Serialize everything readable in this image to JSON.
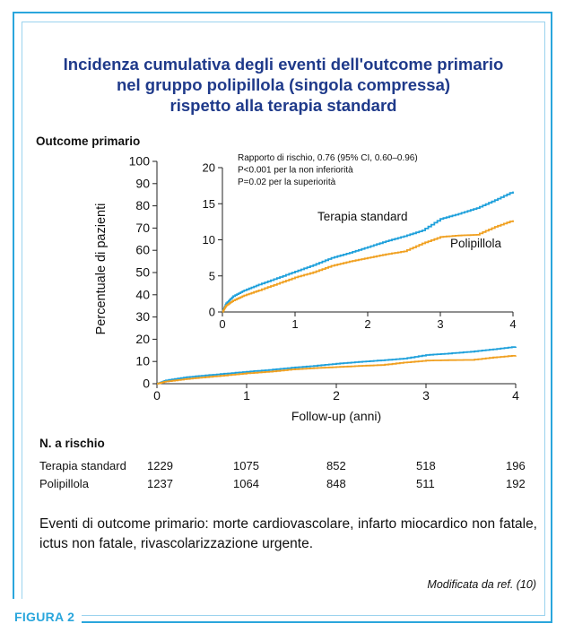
{
  "title_lines": [
    "Incidenza cumulativa degli eventi dell'outcome primario",
    "nel gruppo polipillola (singola compressa)",
    "rispetto alla terapia standard"
  ],
  "outcome_heading": "Outcome primario",
  "figure_label": "FIGURA 2",
  "risk_table": {
    "heading": "N. a rischio",
    "rows": [
      {
        "label": "Terapia standard",
        "values": [
          "1229",
          "1075",
          "852",
          "518",
          "196"
        ]
      },
      {
        "label": "Polipillola",
        "values": [
          "1237",
          "1064",
          "848",
          "511",
          "192"
        ]
      }
    ]
  },
  "footnote": "Eventi di outcome primario: morte cardiovascolare, infarto miocardico non fatale, ictus non fatale, rivascolarizzazione urgente.",
  "source": "Modificata da ref. (10)",
  "colors": {
    "standard": "#1ea0db",
    "polypill": "#f0a020",
    "title": "#1f3a8a",
    "frame": "#2aa6dc"
  },
  "chart_data": [
    {
      "type": "line",
      "title": "",
      "xlabel": "Follow-up (anni)",
      "ylabel": "Percentuale di pazienti",
      "xlim": [
        0,
        4
      ],
      "ylim": [
        0,
        100
      ],
      "xticks": [
        "0",
        "1",
        "2",
        "3",
        "4"
      ],
      "yticks": [
        "0",
        "10",
        "20",
        "30",
        "40",
        "50",
        "60",
        "70",
        "80",
        "90",
        "100"
      ],
      "series": [
        {
          "name": "Terapia standard",
          "color": "#1ea0db",
          "x": [
            0,
            0.1,
            0.3,
            0.5,
            0.75,
            1.0,
            1.25,
            1.5,
            1.75,
            2.0,
            2.25,
            2.5,
            2.75,
            3.0,
            3.25,
            3.5,
            3.75,
            4.0
          ],
          "y": [
            0,
            1.5,
            2.8,
            3.6,
            4.5,
            5.4,
            6.2,
            7.2,
            8.0,
            9.0,
            9.8,
            10.5,
            11.3,
            12.9,
            13.6,
            14.4,
            15.5,
            16.7
          ]
        },
        {
          "name": "Polipillola",
          "color": "#f0a020",
          "x": [
            0,
            0.1,
            0.3,
            0.5,
            0.75,
            1.0,
            1.25,
            1.5,
            1.75,
            2.0,
            2.25,
            2.5,
            2.75,
            3.0,
            3.25,
            3.5,
            3.75,
            4.0
          ],
          "y": [
            0,
            1.0,
            2.0,
            2.8,
            3.7,
            4.7,
            5.4,
            6.4,
            7.0,
            7.5,
            8.0,
            8.4,
            9.5,
            10.4,
            10.6,
            10.7,
            11.8,
            12.7
          ]
        }
      ]
    },
    {
      "type": "line",
      "title": "",
      "xlabel": "",
      "ylabel": "",
      "xlim": [
        0,
        4
      ],
      "ylim": [
        0,
        20
      ],
      "xticks": [
        "0",
        "1",
        "2",
        "3",
        "4"
      ],
      "yticks": [
        "0",
        "5",
        "10",
        "15",
        "20"
      ],
      "annotations": [
        "Rapporto di rischio, 0.76 (95% CI, 0.60–0.96)",
        "P<0.001 per la non inferiorità",
        "P=0.02 per la superiorità"
      ],
      "series": [
        {
          "name": "Terapia standard",
          "color": "#1ea0db",
          "x": [
            0,
            0.05,
            0.15,
            0.3,
            0.5,
            0.75,
            1.0,
            1.25,
            1.5,
            1.75,
            2.0,
            2.25,
            2.5,
            2.75,
            3.0,
            3.25,
            3.5,
            3.75,
            4.0
          ],
          "y": [
            0,
            1.2,
            2.2,
            3.0,
            3.8,
            4.7,
            5.6,
            6.5,
            7.5,
            8.2,
            9.0,
            9.8,
            10.5,
            11.3,
            12.9,
            13.6,
            14.4,
            15.5,
            16.7
          ]
        },
        {
          "name": "Polipillola",
          "color": "#f0a020",
          "x": [
            0,
            0.05,
            0.15,
            0.3,
            0.5,
            0.75,
            1.0,
            1.25,
            1.5,
            1.75,
            2.0,
            2.25,
            2.5,
            2.75,
            3.0,
            3.25,
            3.5,
            3.75,
            4.0
          ],
          "y": [
            0,
            0.9,
            1.6,
            2.3,
            3.0,
            3.9,
            4.8,
            5.5,
            6.4,
            7.0,
            7.5,
            8.0,
            8.4,
            9.5,
            10.4,
            10.6,
            10.7,
            11.8,
            12.7
          ]
        }
      ]
    }
  ]
}
